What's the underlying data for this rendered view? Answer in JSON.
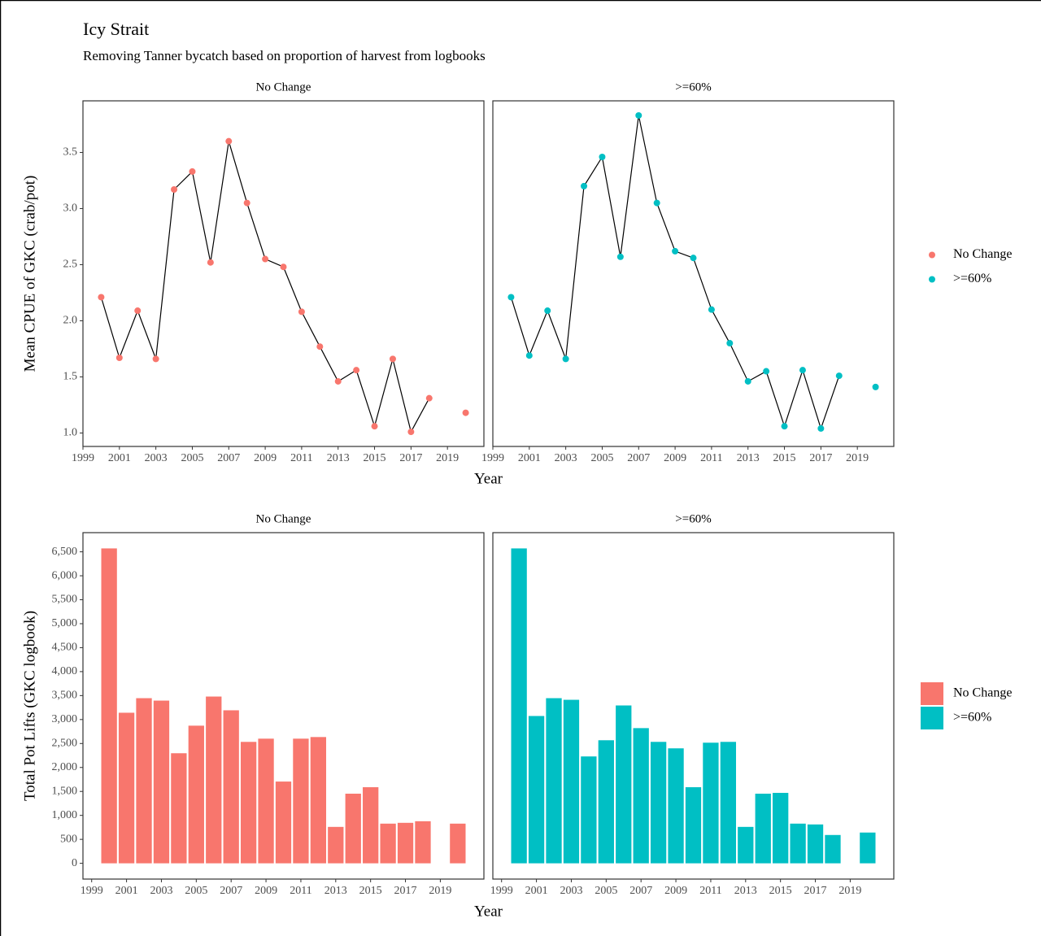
{
  "chart_data": [
    {
      "type": "line",
      "title": "Icy Strait",
      "subtitle": "Removing Tanner bycatch based on proportion of harvest from logbooks",
      "ylabel": "Mean CPUE of GKC (crab/pot)",
      "xlabel": "Year",
      "x": [
        2000,
        2001,
        2002,
        2003,
        2004,
        2005,
        2006,
        2007,
        2008,
        2009,
        2010,
        2011,
        2012,
        2013,
        2014,
        2015,
        2016,
        2017,
        2018,
        2019,
        2020
      ],
      "series": [
        {
          "name": "No Change",
          "color": "#f8766d",
          "values": [
            2.21,
            1.67,
            2.09,
            1.66,
            3.17,
            3.33,
            2.52,
            3.6,
            3.05,
            2.55,
            2.48,
            2.08,
            1.77,
            1.46,
            1.56,
            1.06,
            1.66,
            1.01,
            1.31,
            null,
            1.18
          ]
        },
        {
          "name": ">=60%",
          "color": "#00bfc4",
          "values": [
            2.21,
            1.69,
            2.09,
            1.66,
            3.2,
            3.46,
            2.57,
            3.83,
            3.05,
            2.62,
            2.56,
            2.1,
            1.8,
            1.46,
            1.55,
            1.06,
            1.56,
            1.04,
            1.51,
            null,
            1.41
          ]
        }
      ],
      "line_color": "#000000",
      "xlim": [
        1999,
        2021
      ],
      "xticks": [
        1999,
        2001,
        2003,
        2005,
        2007,
        2009,
        2011,
        2013,
        2015,
        2017,
        2019
      ],
      "ylim": [
        0.88,
        3.96
      ],
      "yticks": [
        {
          "value": 1,
          "label": "1.0"
        },
        1.5,
        {
          "value": 2,
          "label": "2.0"
        },
        2.5,
        {
          "value": 3,
          "label": "3.0"
        },
        3.5
      ],
      "grid": false,
      "legend": "right"
    },
    {
      "type": "bar",
      "ylabel": "Total Pot Lifts (GKC logbook)",
      "xlabel": "Year",
      "x": [
        2000,
        2001,
        2002,
        2003,
        2004,
        2005,
        2006,
        2007,
        2008,
        2009,
        2010,
        2011,
        2012,
        2013,
        2014,
        2015,
        2016,
        2017,
        2018,
        2019,
        2020
      ],
      "series": [
        {
          "name": "No Change",
          "color": "#f8766d",
          "values": [
            6571,
            3142,
            3446,
            3395,
            2297,
            2872,
            3480,
            3193,
            2534,
            2601,
            1706,
            2601,
            2635,
            760,
            1453,
            1588,
            828,
            845,
            878,
            null,
            828
          ]
        },
        {
          "name": ">=60%",
          "color": "#00bfc4",
          "values": [
            6571,
            3074,
            3446,
            3412,
            2230,
            2568,
            3294,
            2821,
            2534,
            2399,
            1588,
            2517,
            2534,
            760,
            1453,
            1470,
            828,
            811,
            591,
            null,
            642
          ]
        }
      ],
      "xlim": [
        1998.5,
        2021.5
      ],
      "xticks": [
        1999,
        2001,
        2003,
        2005,
        2007,
        2009,
        2011,
        2013,
        2015,
        2017,
        2019
      ],
      "ylim": [
        -329,
        6900
      ],
      "yticks": [
        0,
        500,
        {
          "value": 1000,
          "label": "1,000"
        },
        {
          "value": 1500,
          "label": "1,500"
        },
        {
          "value": 2000,
          "label": "2,000"
        },
        {
          "value": 2500,
          "label": "2,500"
        },
        {
          "value": 3000,
          "label": "3,000"
        },
        {
          "value": 3500,
          "label": "3,500"
        },
        {
          "value": 4000,
          "label": "4,000"
        },
        {
          "value": 4500,
          "label": "4,500"
        },
        {
          "value": 5000,
          "label": "5,000"
        },
        {
          "value": 5500,
          "label": "5,500"
        },
        {
          "value": 6000,
          "label": "6,000"
        },
        {
          "value": 6500,
          "label": "6,500"
        }
      ],
      "grid": false,
      "legend": "right"
    }
  ]
}
